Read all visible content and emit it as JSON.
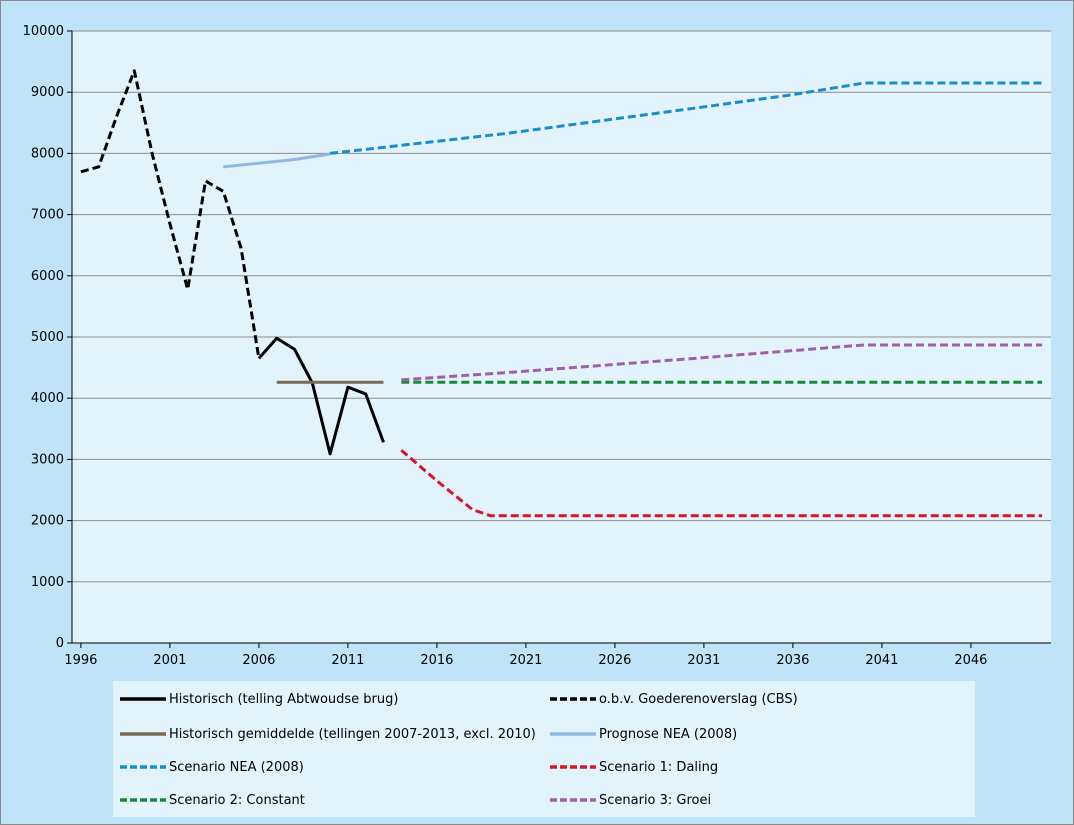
{
  "chart_data": {
    "type": "line",
    "xlim": [
      1995.5,
      2050.5
    ],
    "ylim": [
      0,
      10000
    ],
    "x_ticks": [
      1996,
      2001,
      2006,
      2011,
      2016,
      2021,
      2026,
      2031,
      2036,
      2041,
      2046
    ],
    "y_ticks": [
      0,
      1000,
      2000,
      3000,
      4000,
      5000,
      6000,
      7000,
      8000,
      9000,
      10000
    ],
    "grid": true,
    "legend_position": "bottom",
    "series": [
      {
        "name": "Historisch (telling Abtwoudse brug)",
        "color": "#000000",
        "dashed": false,
        "points": [
          [
            2006,
            4650
          ],
          [
            2007,
            4980
          ],
          [
            2008,
            4800
          ],
          [
            2009,
            4250
          ],
          [
            2010,
            3090
          ],
          [
            2011,
            4180
          ],
          [
            2012,
            4070
          ],
          [
            2013,
            3280
          ]
        ]
      },
      {
        "name": "o.b.v. Goederenoverslag (CBS)",
        "color": "#000000",
        "dashed": true,
        "points": [
          [
            1996,
            7700
          ],
          [
            1997,
            7780
          ],
          [
            1998,
            8600
          ],
          [
            1999,
            9350
          ],
          [
            2000,
            8000
          ],
          [
            2001,
            6850
          ],
          [
            2002,
            5780
          ],
          [
            2003,
            7550
          ],
          [
            2004,
            7380
          ],
          [
            2005,
            6450
          ],
          [
            2006,
            4650
          ]
        ]
      },
      {
        "name": "Historisch gemiddelde (tellingen 2007-2013, excl. 2010)",
        "color": "#7a6a58",
        "dashed": false,
        "points": [
          [
            2007,
            4260
          ],
          [
            2013,
            4260
          ]
        ]
      },
      {
        "name": "Prognose NEA (2008)",
        "color": "#8fb8e0",
        "dashed": false,
        "points": [
          [
            2004,
            7780
          ],
          [
            2008,
            7900
          ],
          [
            2010,
            7990
          ]
        ]
      },
      {
        "name": "Scenario NEA (2008)",
        "color": "#1a8ec8",
        "dashed": true,
        "points": [
          [
            2010,
            8000
          ],
          [
            2020,
            8330
          ],
          [
            2030,
            8720
          ],
          [
            2036,
            8960
          ],
          [
            2040,
            9150
          ],
          [
            2050,
            9150
          ]
        ]
      },
      {
        "name": "Scenario 1: Daling",
        "color": "#d01a2a",
        "dashed": true,
        "points": [
          [
            2014,
            3150
          ],
          [
            2016,
            2650
          ],
          [
            2018,
            2180
          ],
          [
            2019,
            2080
          ],
          [
            2050,
            2080
          ]
        ]
      },
      {
        "name": "Scenario 2: Constant",
        "color": "#1a8a3a",
        "dashed": true,
        "points": [
          [
            2014,
            4260
          ],
          [
            2050,
            4260
          ]
        ]
      },
      {
        "name": "Scenario 3: Groei",
        "color": "#a060a8",
        "dashed": true,
        "points": [
          [
            2014,
            4300
          ],
          [
            2020,
            4420
          ],
          [
            2030,
            4640
          ],
          [
            2040,
            4870
          ],
          [
            2050,
            4870
          ]
        ]
      }
    ]
  }
}
